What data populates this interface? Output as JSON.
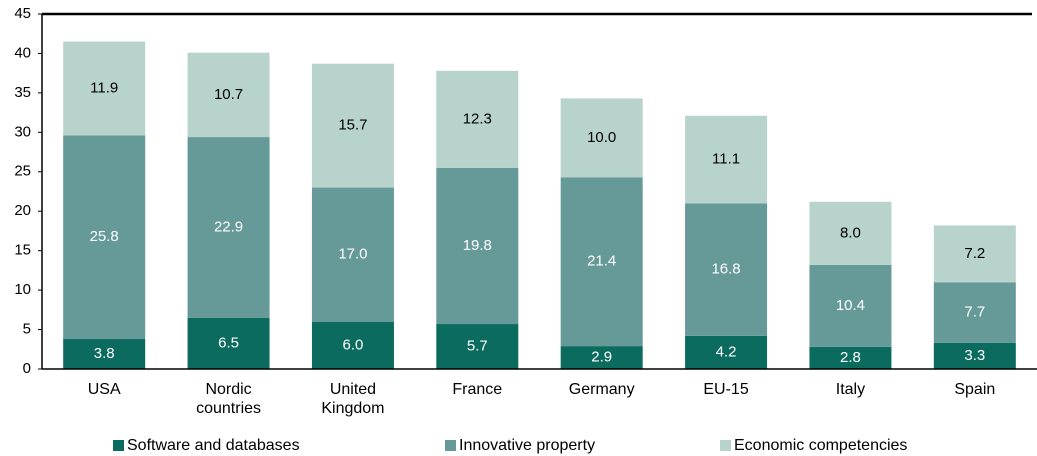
{
  "chart_data": {
    "type": "stacked_bar",
    "categories": [
      "USA",
      "Nordic\ncountries",
      "United\nKingdom",
      "France",
      "Germany",
      "EU-15",
      "Italy",
      "Spain"
    ],
    "series": [
      {
        "name": "Software and databases",
        "color": "#0b6b5f",
        "values": [
          3.8,
          6.5,
          6.0,
          5.7,
          2.9,
          4.2,
          2.8,
          3.3
        ],
        "value_labels": [
          "3.8",
          "6.5",
          "6.0",
          "5.7",
          "2.9",
          "4.2",
          "2.8",
          "3.3"
        ]
      },
      {
        "name": "Innovative property",
        "color": "#669a99",
        "values": [
          25.8,
          22.9,
          17.0,
          19.8,
          21.4,
          16.8,
          10.4,
          7.7
        ],
        "value_labels": [
          "25.8",
          "22.9",
          "17.0",
          "19.8",
          "21.4",
          "16.8",
          "10.4",
          "7.7"
        ]
      },
      {
        "name": "Economic competencies",
        "color": "#b8d3cb",
        "values": [
          11.9,
          10.7,
          15.7,
          12.3,
          10.0,
          11.1,
          8.0,
          7.2
        ],
        "value_labels": [
          "11.9",
          "10.7",
          "15.7",
          "12.3",
          "10.0",
          "11.1",
          "8.0",
          "7.2"
        ]
      }
    ],
    "ylim": [
      0,
      45
    ],
    "yticks": [
      0,
      5,
      10,
      15,
      20,
      25,
      30,
      35,
      40,
      45
    ],
    "grid": false,
    "legend": "bottom"
  }
}
